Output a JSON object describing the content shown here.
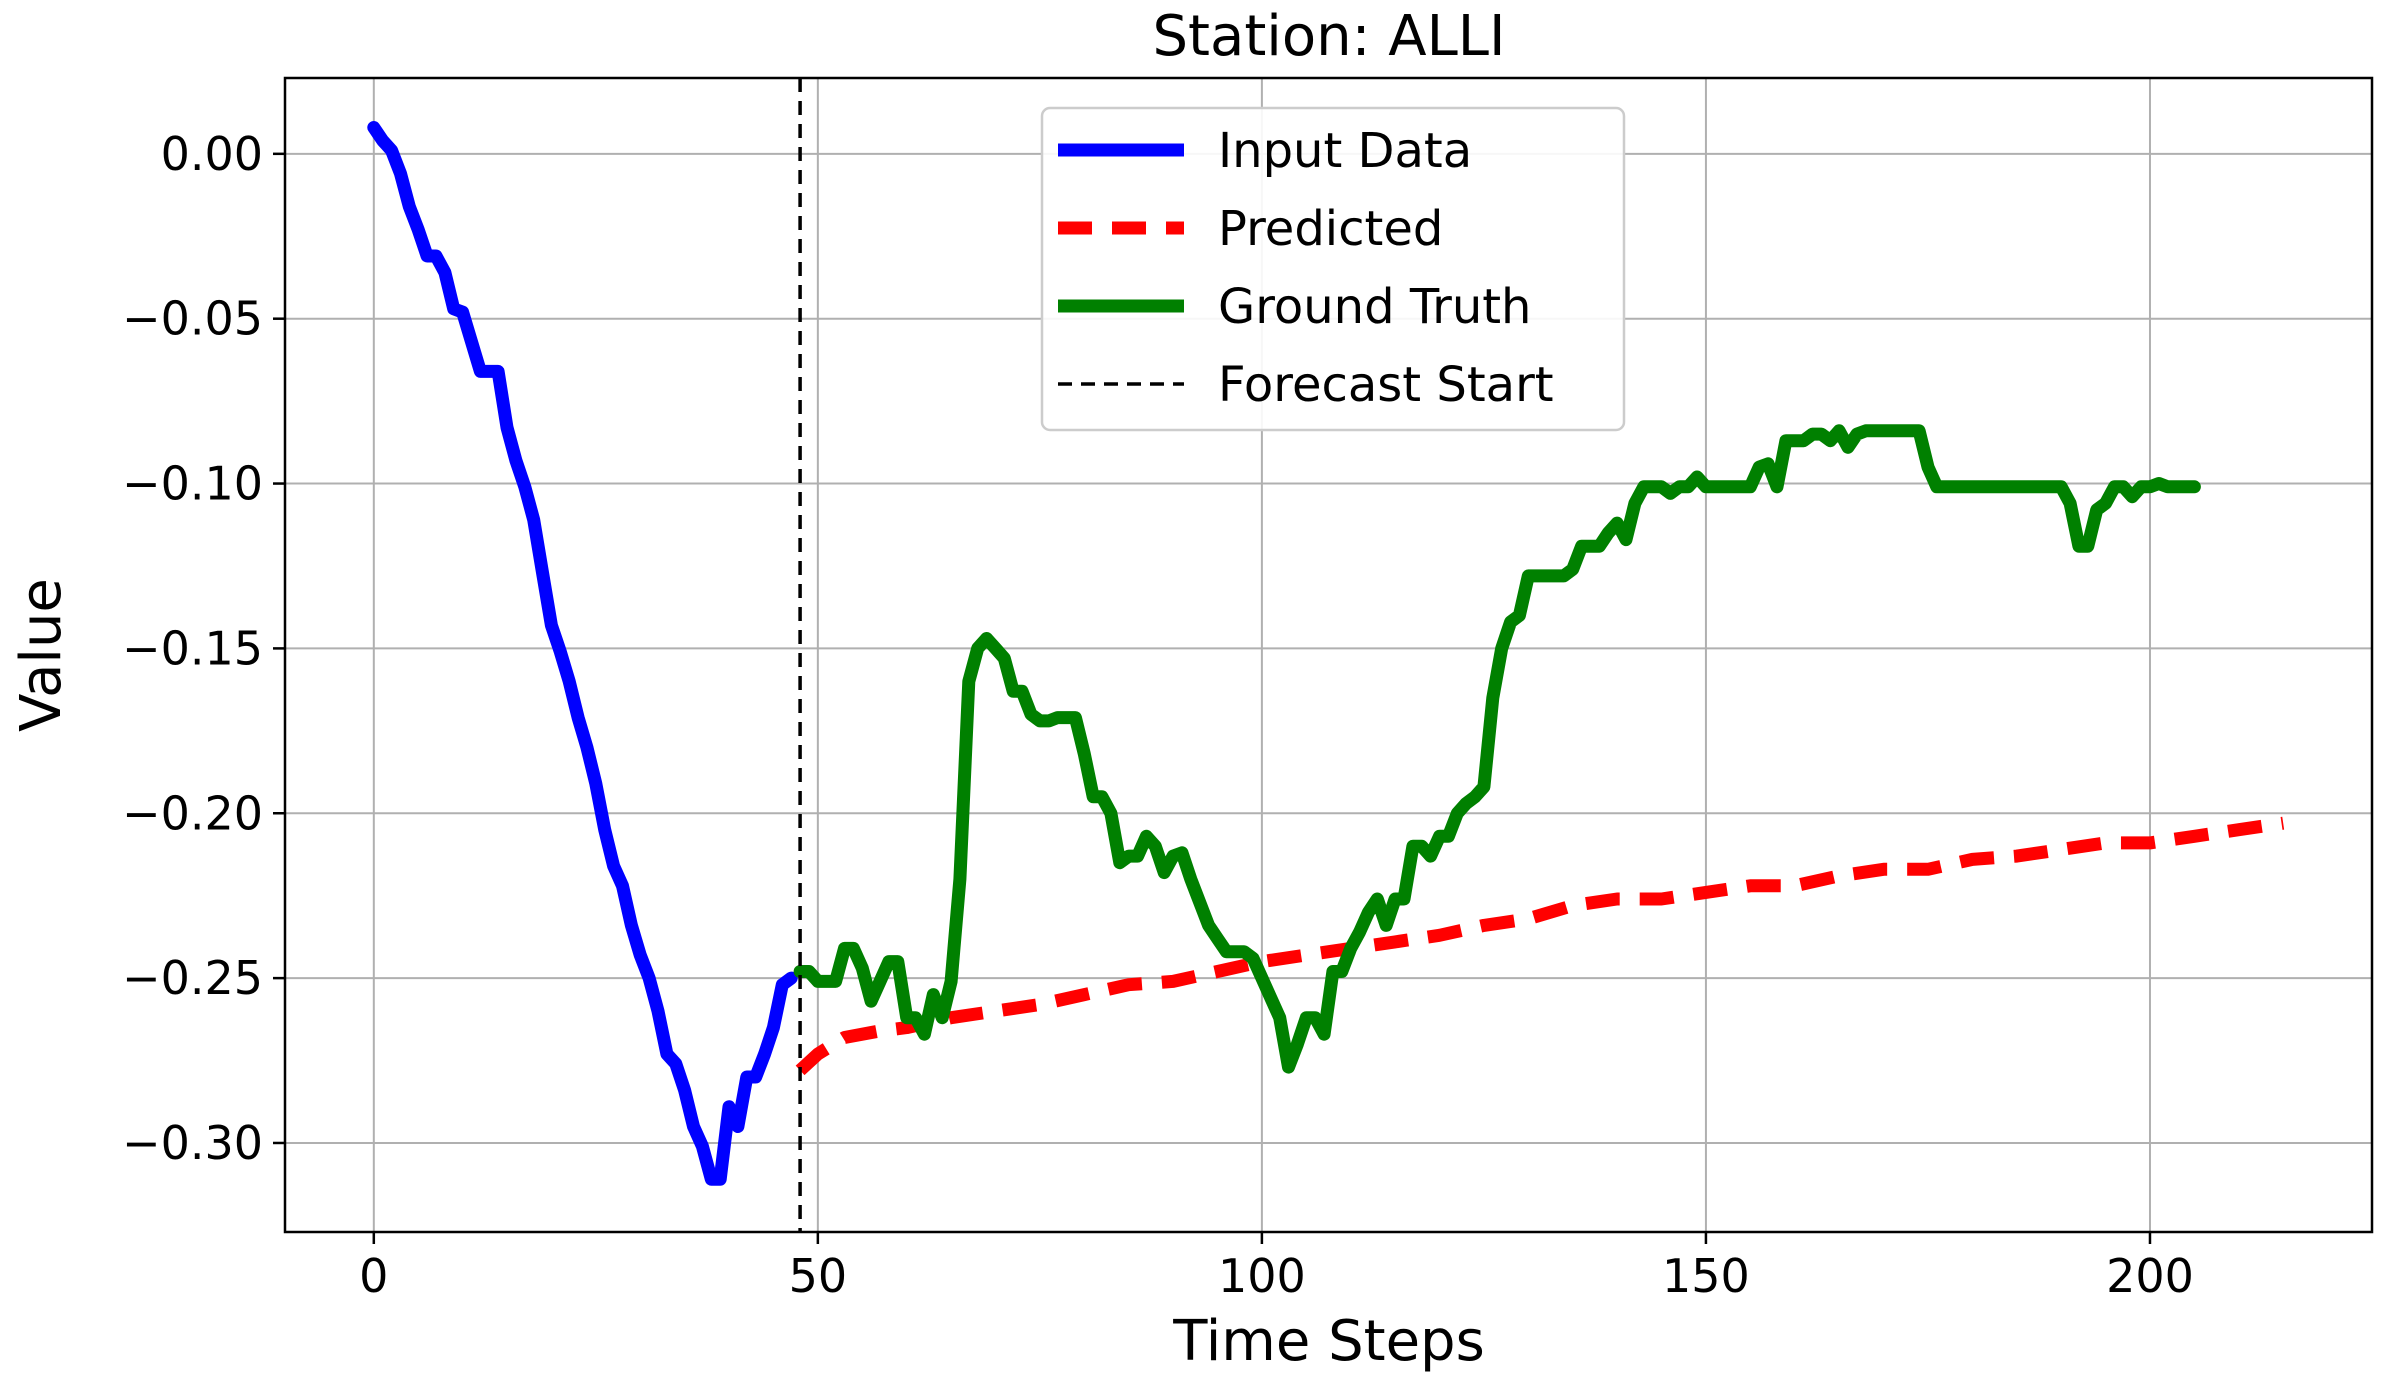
{
  "chart_data": {
    "type": "line",
    "title": "Station: ALLI",
    "xlabel": "Time Steps",
    "ylabel": "Value",
    "xlim": [
      -10,
      225
    ],
    "ylim": [
      -0.327,
      0.023
    ],
    "xticks": [
      0,
      50,
      100,
      150,
      200
    ],
    "xtick_labels": [
      "0",
      "50",
      "100",
      "150",
      "200"
    ],
    "yticks": [
      0.0,
      -0.05,
      -0.1,
      -0.15,
      -0.2,
      -0.25,
      -0.3
    ],
    "ytick_labels": [
      "0.00",
      "−0.05",
      "−0.10",
      "−0.15",
      "−0.20",
      "−0.25",
      "−0.30"
    ],
    "grid": true,
    "legend_position": "top-center",
    "forecast_start": 48,
    "series": [
      {
        "name": "Input Data",
        "color": "#0000ff",
        "style": "solid",
        "points": [
          [
            0,
            0.008
          ],
          [
            1,
            0.004
          ],
          [
            2,
            0.001
          ],
          [
            3,
            -0.006
          ],
          [
            4,
            -0.016
          ],
          [
            5,
            -0.023
          ],
          [
            6,
            -0.031
          ],
          [
            7,
            -0.031
          ],
          [
            8,
            -0.036
          ],
          [
            9,
            -0.047
          ],
          [
            10,
            -0.048
          ],
          [
            11,
            -0.057
          ],
          [
            12,
            -0.066
          ],
          [
            13,
            -0.066
          ],
          [
            14,
            -0.066
          ],
          [
            15,
            -0.083
          ],
          [
            16,
            -0.093
          ],
          [
            17,
            -0.101
          ],
          [
            18,
            -0.111
          ],
          [
            19,
            -0.127
          ],
          [
            20,
            -0.143
          ],
          [
            21,
            -0.151
          ],
          [
            22,
            -0.16
          ],
          [
            23,
            -0.171
          ],
          [
            24,
            -0.18
          ],
          [
            25,
            -0.191
          ],
          [
            26,
            -0.205
          ],
          [
            27,
            -0.216
          ],
          [
            28,
            -0.222
          ],
          [
            29,
            -0.234
          ],
          [
            30,
            -0.243
          ],
          [
            31,
            -0.25
          ],
          [
            32,
            -0.26
          ],
          [
            33,
            -0.273
          ],
          [
            34,
            -0.276
          ],
          [
            35,
            -0.284
          ],
          [
            36,
            -0.295
          ],
          [
            37,
            -0.301
          ],
          [
            38,
            -0.311
          ],
          [
            39,
            -0.311
          ],
          [
            40,
            -0.289
          ],
          [
            41,
            -0.295
          ],
          [
            42,
            -0.28
          ],
          [
            43,
            -0.28
          ],
          [
            44,
            -0.273
          ],
          [
            45,
            -0.265
          ],
          [
            46,
            -0.252
          ],
          [
            47,
            -0.25
          ]
        ]
      },
      {
        "name": "Predicted",
        "color": "#ff0000",
        "style": "dashed",
        "points": [
          [
            48,
            -0.278
          ],
          [
            50,
            -0.273
          ],
          [
            53,
            -0.268
          ],
          [
            57,
            -0.266
          ],
          [
            60,
            -0.265
          ],
          [
            65,
            -0.262
          ],
          [
            70,
            -0.26
          ],
          [
            75,
            -0.258
          ],
          [
            80,
            -0.255
          ],
          [
            85,
            -0.252
          ],
          [
            90,
            -0.251
          ],
          [
            95,
            -0.248
          ],
          [
            100,
            -0.245
          ],
          [
            105,
            -0.243
          ],
          [
            110,
            -0.241
          ],
          [
            115,
            -0.239
          ],
          [
            120,
            -0.237
          ],
          [
            125,
            -0.234
          ],
          [
            130,
            -0.232
          ],
          [
            135,
            -0.228
          ],
          [
            140,
            -0.226
          ],
          [
            145,
            -0.226
          ],
          [
            150,
            -0.224
          ],
          [
            155,
            -0.222
          ],
          [
            160,
            -0.222
          ],
          [
            165,
            -0.219
          ],
          [
            170,
            -0.217
          ],
          [
            175,
            -0.217
          ],
          [
            180,
            -0.214
          ],
          [
            185,
            -0.213
          ],
          [
            190,
            -0.211
          ],
          [
            195,
            -0.209
          ],
          [
            200,
            -0.209
          ],
          [
            205,
            -0.207
          ],
          [
            210,
            -0.205
          ],
          [
            215,
            -0.203
          ]
        ]
      },
      {
        "name": "Ground Truth",
        "color": "#008000",
        "style": "solid",
        "points": [
          [
            48,
            -0.248
          ],
          [
            49,
            -0.248
          ],
          [
            50,
            -0.251
          ],
          [
            51,
            -0.251
          ],
          [
            52,
            -0.251
          ],
          [
            53,
            -0.241
          ],
          [
            54,
            -0.241
          ],
          [
            55,
            -0.247
          ],
          [
            56,
            -0.257
          ],
          [
            57,
            -0.251
          ],
          [
            58,
            -0.245
          ],
          [
            59,
            -0.245
          ],
          [
            60,
            -0.262
          ],
          [
            61,
            -0.262
          ],
          [
            62,
            -0.267
          ],
          [
            63,
            -0.255
          ],
          [
            64,
            -0.262
          ],
          [
            65,
            -0.251
          ],
          [
            66,
            -0.22
          ],
          [
            67,
            -0.16
          ],
          [
            68,
            -0.15
          ],
          [
            69,
            -0.147
          ],
          [
            70,
            -0.15
          ],
          [
            71,
            -0.153
          ],
          [
            72,
            -0.163
          ],
          [
            73,
            -0.163
          ],
          [
            74,
            -0.17
          ],
          [
            75,
            -0.172
          ],
          [
            76,
            -0.172
          ],
          [
            77,
            -0.171
          ],
          [
            78,
            -0.171
          ],
          [
            79,
            -0.171
          ],
          [
            80,
            -0.182
          ],
          [
            81,
            -0.195
          ],
          [
            82,
            -0.195
          ],
          [
            83,
            -0.2
          ],
          [
            84,
            -0.215
          ],
          [
            85,
            -0.213
          ],
          [
            86,
            -0.213
          ],
          [
            87,
            -0.207
          ],
          [
            88,
            -0.21
          ],
          [
            89,
            -0.218
          ],
          [
            90,
            -0.213
          ],
          [
            91,
            -0.212
          ],
          [
            92,
            -0.22
          ],
          [
            93,
            -0.227
          ],
          [
            94,
            -0.234
          ],
          [
            95,
            -0.238
          ],
          [
            96,
            -0.242
          ],
          [
            97,
            -0.242
          ],
          [
            98,
            -0.242
          ],
          [
            99,
            -0.244
          ],
          [
            100,
            -0.25
          ],
          [
            101,
            -0.256
          ],
          [
            102,
            -0.262
          ],
          [
            103,
            -0.277
          ],
          [
            104,
            -0.27
          ],
          [
            105,
            -0.262
          ],
          [
            106,
            -0.262
          ],
          [
            107,
            -0.267
          ],
          [
            108,
            -0.248
          ],
          [
            109,
            -0.248
          ],
          [
            110,
            -0.241
          ],
          [
            111,
            -0.236
          ],
          [
            112,
            -0.23
          ],
          [
            113,
            -0.226
          ],
          [
            114,
            -0.234
          ],
          [
            115,
            -0.226
          ],
          [
            116,
            -0.226
          ],
          [
            117,
            -0.21
          ],
          [
            118,
            -0.21
          ],
          [
            119,
            -0.213
          ],
          [
            120,
            -0.207
          ],
          [
            121,
            -0.207
          ],
          [
            122,
            -0.2
          ],
          [
            123,
            -0.197
          ],
          [
            124,
            -0.195
          ],
          [
            125,
            -0.192
          ],
          [
            126,
            -0.165
          ],
          [
            127,
            -0.15
          ],
          [
            128,
            -0.142
          ],
          [
            129,
            -0.14
          ],
          [
            130,
            -0.128
          ],
          [
            131,
            -0.128
          ],
          [
            132,
            -0.128
          ],
          [
            133,
            -0.128
          ],
          [
            134,
            -0.128
          ],
          [
            135,
            -0.126
          ],
          [
            136,
            -0.119
          ],
          [
            137,
            -0.119
          ],
          [
            138,
            -0.119
          ],
          [
            139,
            -0.115
          ],
          [
            140,
            -0.112
          ],
          [
            141,
            -0.117
          ],
          [
            142,
            -0.106
          ],
          [
            143,
            -0.101
          ],
          [
            144,
            -0.101
          ],
          [
            145,
            -0.101
          ],
          [
            146,
            -0.103
          ],
          [
            147,
            -0.101
          ],
          [
            148,
            -0.101
          ],
          [
            149,
            -0.098
          ],
          [
            150,
            -0.101
          ],
          [
            151,
            -0.101
          ],
          [
            152,
            -0.101
          ],
          [
            153,
            -0.101
          ],
          [
            154,
            -0.101
          ],
          [
            155,
            -0.101
          ],
          [
            156,
            -0.095
          ],
          [
            157,
            -0.094
          ],
          [
            158,
            -0.101
          ],
          [
            159,
            -0.087
          ],
          [
            160,
            -0.087
          ],
          [
            161,
            -0.087
          ],
          [
            162,
            -0.085
          ],
          [
            163,
            -0.085
          ],
          [
            164,
            -0.087
          ],
          [
            165,
            -0.084
          ],
          [
            166,
            -0.089
          ],
          [
            167,
            -0.085
          ],
          [
            168,
            -0.084
          ],
          [
            169,
            -0.084
          ],
          [
            170,
            -0.084
          ],
          [
            171,
            -0.084
          ],
          [
            172,
            -0.084
          ],
          [
            173,
            -0.084
          ],
          [
            174,
            -0.084
          ],
          [
            175,
            -0.095
          ],
          [
            176,
            -0.101
          ],
          [
            177,
            -0.101
          ],
          [
            178,
            -0.101
          ],
          [
            179,
            -0.101
          ],
          [
            180,
            -0.101
          ],
          [
            181,
            -0.101
          ],
          [
            182,
            -0.101
          ],
          [
            183,
            -0.101
          ],
          [
            184,
            -0.101
          ],
          [
            185,
            -0.101
          ],
          [
            186,
            -0.101
          ],
          [
            187,
            -0.101
          ],
          [
            188,
            -0.101
          ],
          [
            189,
            -0.101
          ],
          [
            190,
            -0.101
          ],
          [
            191,
            -0.106
          ],
          [
            192,
            -0.119
          ],
          [
            193,
            -0.119
          ],
          [
            194,
            -0.108
          ],
          [
            195,
            -0.106
          ],
          [
            196,
            -0.101
          ],
          [
            197,
            -0.101
          ],
          [
            198,
            -0.104
          ],
          [
            199,
            -0.101
          ],
          [
            200,
            -0.101
          ],
          [
            201,
            -0.1
          ],
          [
            202,
            -0.101
          ],
          [
            203,
            -0.101
          ],
          [
            204,
            -0.101
          ],
          [
            205,
            -0.101
          ]
        ]
      },
      {
        "name": "Forecast Start",
        "color": "#000000",
        "style": "dashed-thin",
        "points": []
      }
    ]
  }
}
